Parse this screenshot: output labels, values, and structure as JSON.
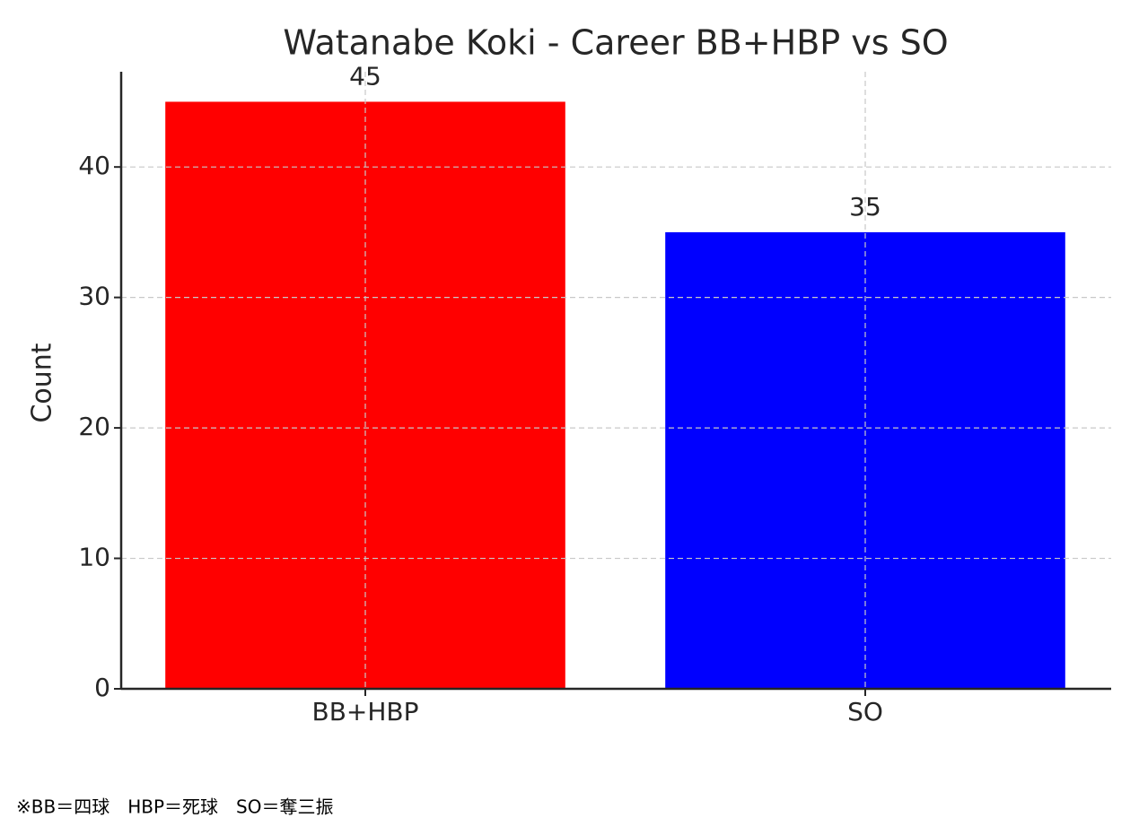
{
  "chart_data": {
    "type": "bar",
    "title": "Watanabe Koki - Career BB+HBP vs SO",
    "y_label": "Count",
    "categories": [
      "BB+HBP",
      "SO"
    ],
    "values": [
      45,
      35
    ],
    "colors": [
      "#ff0000",
      "#0000ff"
    ],
    "ylim": [
      0,
      47.3
    ],
    "yticks": [
      0,
      10,
      20,
      30,
      40
    ],
    "grid": true,
    "value_labels_shown": true
  },
  "footnote": "※BB＝四球　HBP＝死球　SO＝奪三振"
}
